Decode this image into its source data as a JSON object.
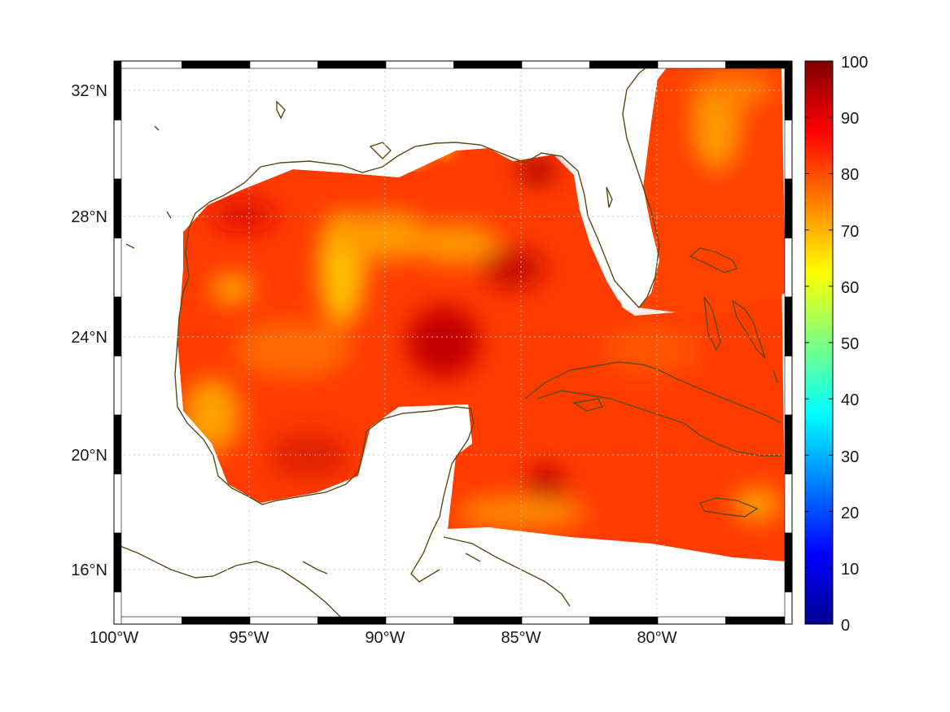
{
  "map": {
    "lat_labels": [
      "32°N",
      "28°N",
      "24°N",
      "20°N",
      "16°N"
    ],
    "lon_labels": [
      "100°W",
      "95°W",
      "90°W",
      "85°W",
      "80°W"
    ],
    "extent": {
      "lon": [
        -100,
        -75.1
      ],
      "lat": [
        14.3,
        32.9
      ]
    },
    "grid": true,
    "frame_style": "alternating black/white border",
    "coastline_color": "#5c4a12",
    "field_palette": [
      "#b80000",
      "#e01500",
      "#ff3c00",
      "#ff7a00",
      "#ffc000",
      "#e8e600"
    ]
  },
  "colorbar": {
    "ticks": [
      "100",
      "90",
      "80",
      "70",
      "60",
      "50",
      "40",
      "30",
      "20",
      "10",
      "0"
    ],
    "range": [
      0,
      100
    ],
    "colormap": "jet",
    "stops": [
      "#00008f",
      "#0000ff",
      "#00ffff",
      "#ffff00",
      "#ff0000",
      "#800000"
    ]
  }
}
